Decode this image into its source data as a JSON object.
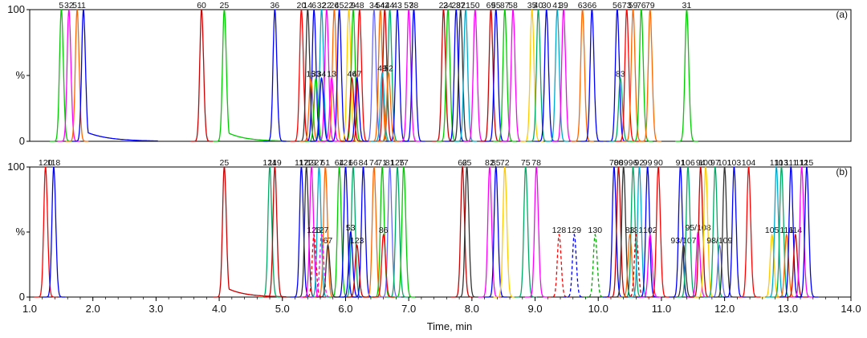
{
  "chart_data": {
    "type": "line",
    "xlabel": "Time, min",
    "xlim": [
      1.0,
      14.0
    ],
    "xticks": [
      "1.0",
      "2.0",
      "3.0",
      "4.0",
      "5.0",
      "6.0",
      "7.0",
      "8.0",
      "9.0",
      "10.0",
      "11.0",
      "12.0",
      "13.0",
      "14.0"
    ],
    "yticks": [
      "0",
      "%",
      "100"
    ],
    "ylim": [
      0,
      100
    ],
    "grid": false,
    "legend": "none",
    "panels": [
      {
        "label": "(a)",
        "peaks": [
          {
            "t": 1.5,
            "h": 100,
            "c": "#00cc00",
            "label": "5"
          },
          {
            "t": 1.62,
            "h": 100,
            "c": "#ff00ff",
            "label": "32"
          },
          {
            "t": 1.75,
            "h": 100,
            "c": "#ff6600",
            "label": "51"
          },
          {
            "t": 1.85,
            "h": 100,
            "c": "#0000ff",
            "label": "1",
            "tail": 1.0
          },
          {
            "t": 3.72,
            "h": 100,
            "c": "#cc0000",
            "label": "60"
          },
          {
            "t": 4.08,
            "h": 100,
            "c": "#00cc00",
            "label": "25",
            "tail": 0.8
          },
          {
            "t": 4.88,
            "h": 100,
            "c": "#0000ff",
            "label": "36"
          },
          {
            "t": 5.3,
            "h": 100,
            "c": "#ff0000",
            "label": "20"
          },
          {
            "t": 5.4,
            "h": 100,
            "c": "#333333",
            "label": "14"
          },
          {
            "t": 5.5,
            "h": 100,
            "c": "#0000ff",
            "label": "6"
          },
          {
            "t": 5.62,
            "h": 100,
            "c": "#00aacc",
            "label": "32"
          },
          {
            "t": 5.7,
            "h": 100,
            "c": "#ff00ff",
            "label": "22"
          },
          {
            "t": 5.82,
            "h": 100,
            "c": "#ff6600",
            "label": "26"
          },
          {
            "t": 5.9,
            "h": 100,
            "c": "#0000ff",
            "label": "45"
          },
          {
            "t": 6.05,
            "h": 100,
            "c": "#ffcc00",
            "label": "22"
          },
          {
            "t": 6.12,
            "h": 100,
            "c": "#00cc00",
            "label": "9"
          },
          {
            "t": 6.22,
            "h": 100,
            "c": "#ff0000",
            "label": "48"
          },
          {
            "t": 6.45,
            "h": 100,
            "c": "#6666ff",
            "label": "34"
          },
          {
            "t": 6.55,
            "h": 100,
            "c": "#ff6600",
            "label": "54"
          },
          {
            "t": 6.62,
            "h": 100,
            "c": "#cc0000",
            "label": "42"
          },
          {
            "t": 6.7,
            "h": 100,
            "c": "#00aa66",
            "label": "44"
          },
          {
            "t": 6.82,
            "h": 100,
            "c": "#0000ff",
            "label": "43"
          },
          {
            "t": 7.0,
            "h": 100,
            "c": "#ff00ff",
            "label": "57"
          },
          {
            "t": 7.08,
            "h": 100,
            "c": "#0000ff",
            "label": "38"
          },
          {
            "t": 5.45,
            "h": 48,
            "c": "#ff6600",
            "label": "15"
          },
          {
            "t": 5.53,
            "h": 48,
            "c": "#00cc00",
            "label": "33"
          },
          {
            "t": 5.62,
            "h": 48,
            "c": "#0000ff",
            "label": "34"
          },
          {
            "t": 5.78,
            "h": 48,
            "c": "#ff00ff",
            "label": "13"
          },
          {
            "t": 6.1,
            "h": 48,
            "c": "#cc0000",
            "label": "46"
          },
          {
            "t": 6.18,
            "h": 48,
            "c": "#0000ff",
            "label": "47"
          },
          {
            "t": 6.58,
            "h": 52,
            "c": "#00aacc",
            "label": "49"
          },
          {
            "t": 6.68,
            "h": 52,
            "c": "#ff6600",
            "label": "52"
          },
          {
            "t": 7.55,
            "h": 100,
            "c": "#cc0000",
            "label": "23"
          },
          {
            "t": 7.62,
            "h": 100,
            "c": "#00cc00",
            "label": "24"
          },
          {
            "t": 7.75,
            "h": 100,
            "c": "#0000ff",
            "label": "28"
          },
          {
            "t": 7.82,
            "h": 100,
            "c": "#333333",
            "label": "37"
          },
          {
            "t": 7.9,
            "h": 100,
            "c": "#00aacc",
            "label": "21"
          },
          {
            "t": 8.05,
            "h": 100,
            "c": "#ff00ff",
            "label": "50"
          },
          {
            "t": 8.3,
            "h": 100,
            "c": "#cc0000",
            "label": "69"
          },
          {
            "t": 8.38,
            "h": 100,
            "c": "#0000ff",
            "label": "55"
          },
          {
            "t": 8.52,
            "h": 100,
            "c": "#00cc00",
            "label": "87"
          },
          {
            "t": 8.65,
            "h": 100,
            "c": "#ff00ff",
            "label": "58"
          },
          {
            "t": 8.95,
            "h": 100,
            "c": "#ffcc00",
            "label": "35"
          },
          {
            "t": 9.05,
            "h": 100,
            "c": "#00aa66",
            "label": "40"
          },
          {
            "t": 9.18,
            "h": 100,
            "c": "#0000ff",
            "label": "30"
          },
          {
            "t": 9.35,
            "h": 100,
            "c": "#00aacc",
            "label": "41"
          },
          {
            "t": 9.45,
            "h": 100,
            "c": "#ff00ff",
            "label": "39"
          },
          {
            "t": 9.75,
            "h": 100,
            "c": "#ff6600",
            "label": "63"
          },
          {
            "t": 9.9,
            "h": 100,
            "c": "#0000ff",
            "label": "66"
          },
          {
            "t": 10.3,
            "h": 100,
            "c": "#0000ff",
            "label": "56"
          },
          {
            "t": 10.35,
            "h": 48,
            "c": "#00aa66",
            "label": "83"
          },
          {
            "t": 10.45,
            "h": 100,
            "c": "#ff0000",
            "label": "73"
          },
          {
            "t": 10.55,
            "h": 100,
            "c": "#ff6600",
            "label": "59"
          },
          {
            "t": 10.68,
            "h": 100,
            "c": "#00cc00",
            "label": "76"
          },
          {
            "t": 10.82,
            "h": 100,
            "c": "#ff6600",
            "label": "79"
          },
          {
            "t": 11.4,
            "h": 100,
            "c": "#00cc00",
            "label": "31"
          }
        ]
      },
      {
        "label": "(b)",
        "peaks": [
          {
            "t": 1.25,
            "h": 100,
            "c": "#ff0000",
            "label": "120"
          },
          {
            "t": 1.38,
            "h": 100,
            "c": "#0000ff",
            "label": "118"
          },
          {
            "t": 4.08,
            "h": 100,
            "c": "#cc0000",
            "label": "25",
            "tail": 0.8
          },
          {
            "t": 4.8,
            "h": 100,
            "c": "#00aa66",
            "label": "124"
          },
          {
            "t": 4.88,
            "h": 100,
            "c": "#cc0000",
            "label": "119"
          },
          {
            "t": 5.3,
            "h": 100,
            "c": "#0000ff",
            "label": "117"
          },
          {
            "t": 5.38,
            "h": 100,
            "c": "#333333",
            "label": "122"
          },
          {
            "t": 5.46,
            "h": 100,
            "c": "#ff00ff",
            "label": "19"
          },
          {
            "t": 5.58,
            "h": 100,
            "c": "#00aacc",
            "label": "27"
          },
          {
            "t": 5.68,
            "h": 100,
            "c": "#ff6600",
            "label": "61"
          },
          {
            "t": 5.9,
            "h": 100,
            "c": "#00cc00",
            "label": "64"
          },
          {
            "t": 6.0,
            "h": 100,
            "c": "#0000ff",
            "label": "121"
          },
          {
            "t": 6.12,
            "h": 100,
            "c": "#00aa66",
            "label": "66"
          },
          {
            "t": 6.28,
            "h": 100,
            "c": "#0000ff",
            "label": "84"
          },
          {
            "t": 6.45,
            "h": 100,
            "c": "#ff6600",
            "label": "74"
          },
          {
            "t": 6.58,
            "h": 100,
            "c": "#00cc00",
            "label": "71"
          },
          {
            "t": 6.7,
            "h": 100,
            "c": "#6666ff",
            "label": "81"
          },
          {
            "t": 6.82,
            "h": 100,
            "c": "#00aa66",
            "label": "125"
          },
          {
            "t": 6.92,
            "h": 100,
            "c": "#00cc00",
            "label": "77"
          },
          {
            "t": 5.5,
            "h": 48,
            "c": "#ff0000",
            "label": "126",
            "dash": true
          },
          {
            "t": 5.62,
            "h": 48,
            "c": "#ff00ff",
            "label": "127",
            "dash": true
          },
          {
            "t": 5.72,
            "h": 40,
            "c": "#333333",
            "label": "67"
          },
          {
            "t": 6.08,
            "h": 50,
            "c": "#0000ff",
            "label": "53"
          },
          {
            "t": 6.18,
            "h": 40,
            "c": "#cc0000",
            "label": "123"
          },
          {
            "t": 6.6,
            "h": 48,
            "c": "#ff0000",
            "label": "86"
          },
          {
            "t": 7.85,
            "h": 100,
            "c": "#cc0000",
            "label": "62"
          },
          {
            "t": 7.92,
            "h": 100,
            "c": "#333333",
            "label": "65"
          },
          {
            "t": 8.28,
            "h": 100,
            "c": "#ff00ff",
            "label": "82"
          },
          {
            "t": 8.38,
            "h": 100,
            "c": "#0000ff",
            "label": "85"
          },
          {
            "t": 8.52,
            "h": 100,
            "c": "#ffcc00",
            "label": "72"
          },
          {
            "t": 8.85,
            "h": 100,
            "c": "#00aa66",
            "label": "75"
          },
          {
            "t": 9.02,
            "h": 100,
            "c": "#ff00ff",
            "label": "78"
          },
          {
            "t": 9.38,
            "h": 48,
            "c": "#ff0000",
            "label": "128",
            "dash": true
          },
          {
            "t": 9.62,
            "h": 48,
            "c": "#0000ff",
            "label": "129",
            "dash": true
          },
          {
            "t": 9.95,
            "h": 48,
            "c": "#00aa00",
            "label": "130",
            "dash": true
          },
          {
            "t": 10.25,
            "h": 100,
            "c": "#0000ff",
            "label": "70"
          },
          {
            "t": 10.32,
            "h": 100,
            "c": "#cc0000",
            "label": "80"
          },
          {
            "t": 10.4,
            "h": 100,
            "c": "#333333",
            "label": "89"
          },
          {
            "t": 10.5,
            "h": 48,
            "c": "#ff6600",
            "label": "88"
          },
          {
            "t": 10.55,
            "h": 100,
            "c": "#00aa66",
            "label": "96"
          },
          {
            "t": 10.6,
            "h": 48,
            "c": "#cc0000",
            "label": "131",
            "dash": true
          },
          {
            "t": 10.65,
            "h": 100,
            "c": "#00aacc",
            "label": "92"
          },
          {
            "t": 10.78,
            "h": 100,
            "c": "#0000ff",
            "label": "99"
          },
          {
            "t": 10.82,
            "h": 48,
            "c": "#ff00ff",
            "label": "102"
          },
          {
            "t": 10.95,
            "h": 100,
            "c": "#ff0000",
            "label": "90"
          },
          {
            "t": 11.3,
            "h": 100,
            "c": "#0000ff",
            "label": "91"
          },
          {
            "t": 11.35,
            "h": 40,
            "c": "#333333",
            "label": "93/107"
          },
          {
            "t": 11.42,
            "h": 100,
            "c": "#00aa66",
            "label": "106"
          },
          {
            "t": 11.58,
            "h": 50,
            "c": "#ff00ff",
            "label": "95/108"
          },
          {
            "t": 11.62,
            "h": 100,
            "c": "#cc0000",
            "label": "94"
          },
          {
            "t": 11.7,
            "h": 100,
            "c": "#ffcc00",
            "label": "100"
          },
          {
            "t": 11.85,
            "h": 100,
            "c": "#00aa66",
            "label": "97"
          },
          {
            "t": 11.92,
            "h": 40,
            "c": "#6666ff",
            "label": "98/109"
          },
          {
            "t": 12.0,
            "h": 100,
            "c": "#333333",
            "label": "101"
          },
          {
            "t": 12.15,
            "h": 100,
            "c": "#0000ff",
            "label": "103"
          },
          {
            "t": 12.38,
            "h": 100,
            "c": "#ff0000",
            "label": "104"
          },
          {
            "t": 12.75,
            "h": 48,
            "c": "#ffcc00",
            "label": "105"
          },
          {
            "t": 12.82,
            "h": 100,
            "c": "#00aacc",
            "label": "110"
          },
          {
            "t": 12.9,
            "h": 100,
            "c": "#00aa66",
            "label": "113"
          },
          {
            "t": 12.98,
            "h": 48,
            "c": "#ff6600",
            "label": "116"
          },
          {
            "t": 13.05,
            "h": 100,
            "c": "#0000ff",
            "label": "111"
          },
          {
            "t": 13.12,
            "h": 48,
            "c": "#cc0000",
            "label": "114"
          },
          {
            "t": 13.22,
            "h": 100,
            "c": "#ff00ff",
            "label": "112"
          },
          {
            "t": 13.3,
            "h": 100,
            "c": "#0000ff",
            "label": "115"
          }
        ]
      }
    ]
  }
}
